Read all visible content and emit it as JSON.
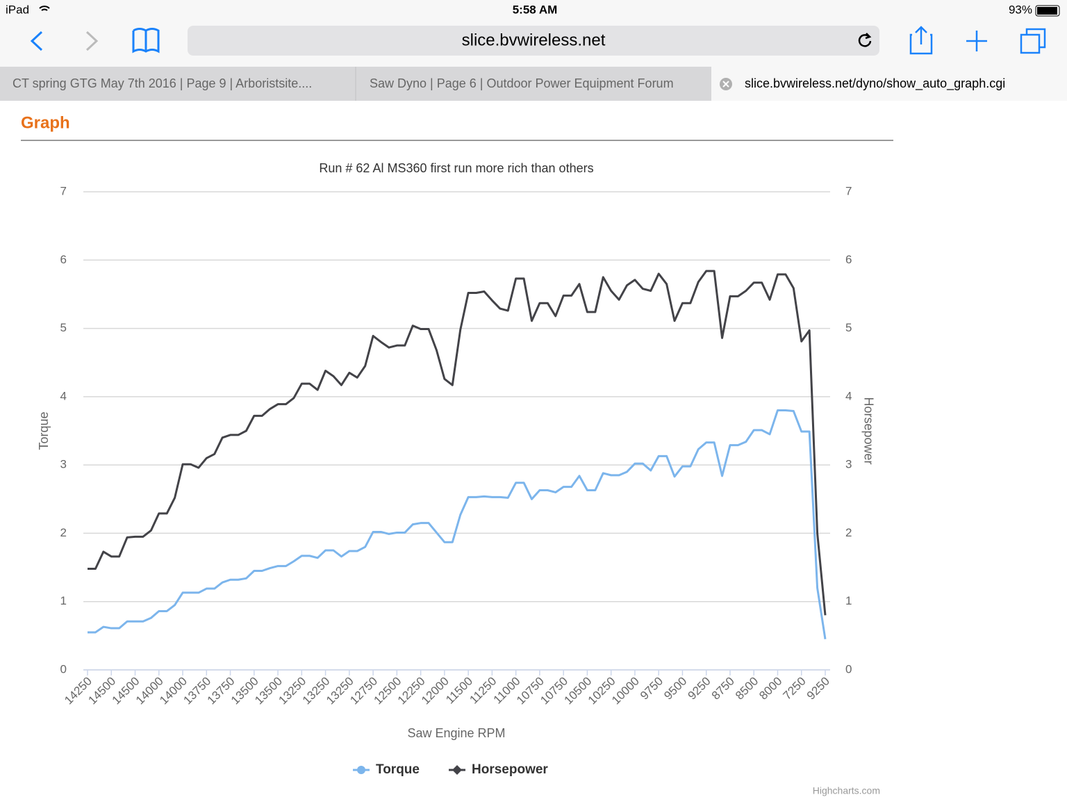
{
  "status_bar": {
    "device": "iPad",
    "time": "5:58 AM",
    "battery": "93%"
  },
  "browser": {
    "address": "slice.bvwireless.net",
    "tabs": [
      "CT spring GTG May 7th 2016 | Page 9 | Arboristsite....",
      "Saw Dyno | Page 6 | Outdoor Power Equipment Forum",
      "slice.bvwireless.net/dyno/show_auto_graph.cgi"
    ]
  },
  "page": {
    "heading": "Graph",
    "credit": "Highcharts.com"
  },
  "chart_data": {
    "type": "line",
    "title": "Run # 62 Al MS360 first run more rich than others",
    "x_label": "Saw Engine RPM",
    "y_label": "Torque",
    "y2_label": "Horsepower",
    "categories": [
      "14250",
      null,
      null,
      "14500",
      null,
      null,
      "14500",
      null,
      null,
      "14000",
      null,
      null,
      "14000",
      null,
      null,
      "13750",
      null,
      null,
      "13750",
      null,
      null,
      "13500",
      null,
      null,
      "13500",
      null,
      null,
      "13250",
      null,
      null,
      "13250",
      null,
      null,
      "13250",
      null,
      null,
      "12750",
      null,
      null,
      "12500",
      null,
      null,
      "12250",
      null,
      null,
      "12000",
      null,
      null,
      "11500",
      null,
      null,
      "11250",
      null,
      null,
      "11000",
      null,
      null,
      "10750",
      null,
      null,
      "10750",
      null,
      null,
      "10500",
      null,
      null,
      "10250",
      null,
      null,
      "10000",
      null,
      null,
      "9750",
      null,
      null,
      "9500",
      null,
      null,
      "9250",
      null,
      null,
      "8750",
      null,
      null,
      "8500",
      null,
      null,
      "8000",
      null,
      null,
      "7250",
      null,
      null,
      "9250"
    ],
    "series": [
      {
        "name": "Torque",
        "color": "#7cb5ec",
        "values": [
          0.55,
          0.55,
          0.63,
          0.61,
          0.61,
          0.71,
          0.71,
          0.71,
          0.76,
          0.86,
          0.86,
          0.95,
          1.13,
          1.13,
          1.13,
          1.19,
          1.19,
          1.28,
          1.32,
          1.32,
          1.34,
          1.45,
          1.45,
          1.49,
          1.52,
          1.52,
          1.59,
          1.67,
          1.67,
          1.64,
          1.75,
          1.75,
          1.66,
          1.74,
          1.74,
          1.8,
          2.02,
          2.02,
          1.99,
          2.01,
          2.01,
          2.13,
          2.15,
          2.15,
          2.01,
          1.87,
          1.87,
          2.27,
          2.53,
          2.53,
          2.54,
          2.53,
          2.53,
          2.52,
          2.74,
          2.74,
          2.5,
          2.63,
          2.63,
          2.6,
          2.68,
          2.68,
          2.84,
          2.63,
          2.63,
          2.88,
          2.85,
          2.85,
          2.9,
          3.02,
          3.02,
          2.92,
          3.13,
          3.13,
          2.83,
          2.98,
          2.98,
          3.23,
          3.33,
          3.33,
          2.84,
          3.29,
          3.29,
          3.34,
          3.51,
          3.51,
          3.45,
          3.8,
          3.8,
          3.79,
          3.49,
          3.49,
          1.2,
          0.45
        ]
      },
      {
        "name": "Horsepower",
        "color": "#434348",
        "axis": "y2",
        "values": [
          1.48,
          1.48,
          1.73,
          1.66,
          1.66,
          1.94,
          1.95,
          1.95,
          2.04,
          2.29,
          2.29,
          2.52,
          3.01,
          3.01,
          2.96,
          3.1,
          3.16,
          3.4,
          3.44,
          3.44,
          3.5,
          3.72,
          3.72,
          3.82,
          3.89,
          3.89,
          3.98,
          4.19,
          4.19,
          4.1,
          4.38,
          4.3,
          4.17,
          4.35,
          4.28,
          4.45,
          4.89,
          4.8,
          4.72,
          4.75,
          4.75,
          5.04,
          4.99,
          4.99,
          4.68,
          4.26,
          4.17,
          4.98,
          5.52,
          5.52,
          5.54,
          5.41,
          5.29,
          5.26,
          5.73,
          5.73,
          5.11,
          5.37,
          5.37,
          5.18,
          5.48,
          5.48,
          5.65,
          5.24,
          5.24,
          5.75,
          5.55,
          5.42,
          5.63,
          5.71,
          5.58,
          5.55,
          5.8,
          5.65,
          5.11,
          5.37,
          5.37,
          5.68,
          5.84,
          5.84,
          4.86,
          5.47,
          5.47,
          5.55,
          5.67,
          5.67,
          5.42,
          5.79,
          5.79,
          5.59,
          4.81,
          4.97,
          2.0,
          0.8
        ]
      }
    ],
    "ylim": [
      0,
      7
    ],
    "yticks": [
      0,
      1,
      2,
      3,
      4,
      5,
      6,
      7
    ],
    "y2lim": [
      0,
      7
    ],
    "y2ticks": [
      0,
      1,
      2,
      3,
      4,
      5,
      6,
      7
    ],
    "grid": true,
    "legend": "bottom"
  }
}
